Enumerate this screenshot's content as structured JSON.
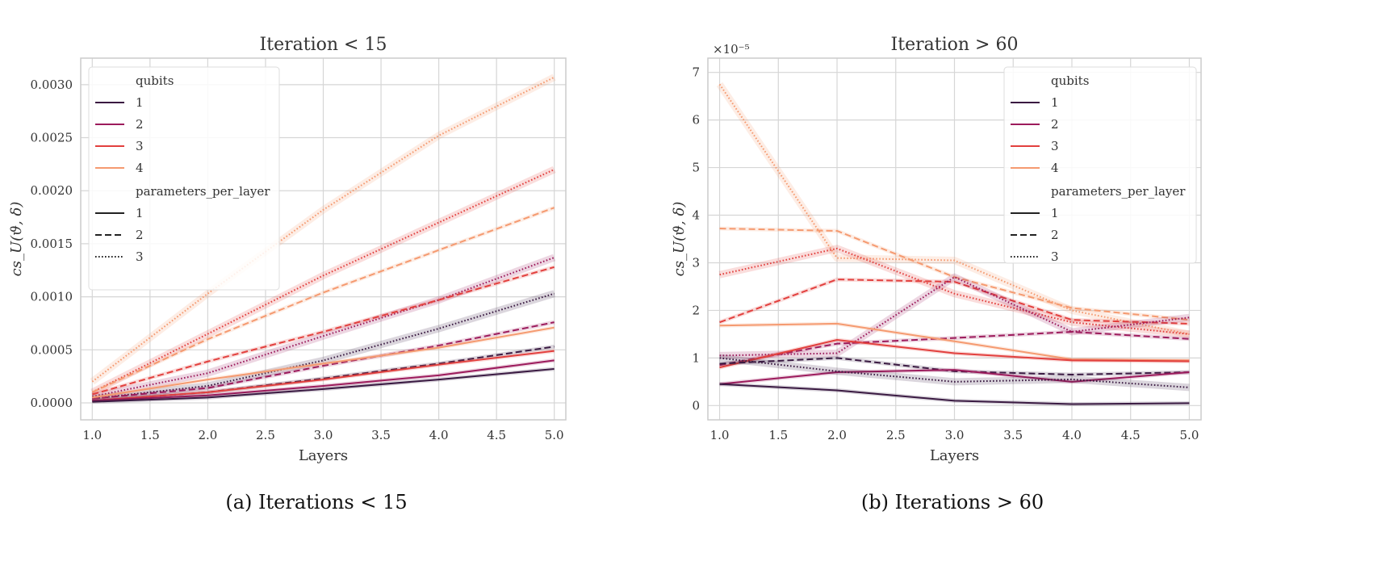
{
  "colors": {
    "q1": "#3a1a42",
    "q2": "#9c1b5c",
    "q3": "#e2403e",
    "q4": "#f59a70",
    "grid": "#d6d6d6",
    "legend_line": "#222222"
  },
  "legend": {
    "hue_title": "qubits",
    "hue_entries": [
      "1",
      "2",
      "3",
      "4"
    ],
    "style_title": "parameters_per_layer",
    "style_entries": [
      "1",
      "2",
      "3"
    ]
  },
  "chart_data": [
    {
      "type": "line",
      "title": "Iteration < 15",
      "caption": "(a) Iterations < 15",
      "xlabel": "Layers",
      "ylabel": "cs_U(ϑ, δ)",
      "y_multiplier_label": "",
      "xlim": [
        0.9,
        5.1
      ],
      "ylim": [
        -0.00016,
        0.00325
      ],
      "xticks": [
        "1.0",
        "1.5",
        "2.0",
        "2.5",
        "3.0",
        "3.5",
        "4.0",
        "4.5",
        "5.0"
      ],
      "yticks": [
        "0.0000",
        "0.0005",
        "0.0010",
        "0.0015",
        "0.0020",
        "0.0025",
        "0.0030"
      ],
      "ytick_values": [
        0,
        0.0005,
        0.001,
        0.0015,
        0.002,
        0.0025,
        0.003
      ],
      "legend_position": "upper-left",
      "grid": true,
      "x": [
        1,
        2,
        3,
        4,
        5
      ],
      "series": [
        {
          "qubits": "4",
          "parameters_per_layer": "3",
          "values": [
            0.0002,
            0.00103,
            0.00182,
            0.00252,
            0.00307
          ]
        },
        {
          "qubits": "3",
          "parameters_per_layer": "3",
          "values": [
            0.0001,
            0.00065,
            0.0012,
            0.0017,
            0.0022
          ]
        },
        {
          "qubits": "4",
          "parameters_per_layer": "2",
          "values": [
            0.0001,
            0.0006,
            0.00104,
            0.00144,
            0.00184
          ]
        },
        {
          "qubits": "2",
          "parameters_per_layer": "3",
          "values": [
            6e-05,
            0.00028,
            0.00063,
            0.00097,
            0.00137
          ]
        },
        {
          "qubits": "3",
          "parameters_per_layer": "2",
          "values": [
            8e-05,
            0.00039,
            0.00067,
            0.00097,
            0.00128
          ]
        },
        {
          "qubits": "1",
          "parameters_per_layer": "3",
          "values": [
            4e-05,
            0.00016,
            0.0004,
            0.0007,
            0.00103
          ]
        },
        {
          "qubits": "2",
          "parameters_per_layer": "2",
          "values": [
            4e-05,
            0.00014,
            0.00035,
            0.00054,
            0.00076
          ]
        },
        {
          "qubits": "4",
          "parameters_per_layer": "1",
          "values": [
            5e-05,
            0.00022,
            0.00037,
            0.00052,
            0.00071
          ]
        },
        {
          "qubits": "1",
          "parameters_per_layer": "2",
          "values": [
            2e-05,
            0.0001,
            0.00023,
            0.00037,
            0.00053
          ]
        },
        {
          "qubits": "3",
          "parameters_per_layer": "1",
          "values": [
            2e-05,
            0.0001,
            0.00022,
            0.00036,
            0.00049
          ]
        },
        {
          "qubits": "2",
          "parameters_per_layer": "1",
          "values": [
            2e-05,
            7e-05,
            0.00016,
            0.00026,
            0.0004
          ]
        },
        {
          "qubits": "1",
          "parameters_per_layer": "1",
          "values": [
            1e-05,
            5e-05,
            0.00013,
            0.00022,
            0.00032
          ]
        }
      ]
    },
    {
      "type": "line",
      "title": "Iteration > 60",
      "caption": "(b) Iterations > 60",
      "xlabel": "Layers",
      "ylabel": "cs_U(ϑ, δ)",
      "y_multiplier_label": "×10⁻⁵",
      "xlim": [
        0.9,
        5.1
      ],
      "ylim": [
        -0.3,
        7.3
      ],
      "xticks": [
        "1.0",
        "1.5",
        "2.0",
        "2.5",
        "3.0",
        "3.5",
        "4.0",
        "4.5",
        "5.0"
      ],
      "yticks": [
        "0",
        "1",
        "2",
        "3",
        "4",
        "5",
        "6",
        "7"
      ],
      "ytick_values": [
        0,
        1,
        2,
        3,
        4,
        5,
        6,
        7
      ],
      "legend_position": "upper-right",
      "grid": true,
      "x": [
        1,
        2,
        3,
        4,
        5
      ],
      "series": [
        {
          "qubits": "4",
          "parameters_per_layer": "3",
          "values": [
            6.75,
            3.1,
            3.05,
            2.0,
            1.5
          ]
        },
        {
          "qubits": "4",
          "parameters_per_layer": "2",
          "values": [
            3.72,
            3.67,
            2.7,
            2.05,
            1.8
          ]
        },
        {
          "qubits": "3",
          "parameters_per_layer": "3",
          "values": [
            2.75,
            3.3,
            2.35,
            1.75,
            1.5
          ]
        },
        {
          "qubits": "3",
          "parameters_per_layer": "2",
          "values": [
            1.75,
            2.65,
            2.6,
            1.8,
            1.72
          ]
        },
        {
          "qubits": "2",
          "parameters_per_layer": "3",
          "values": [
            1.05,
            1.1,
            2.7,
            1.55,
            1.85
          ]
        },
        {
          "qubits": "2",
          "parameters_per_layer": "2",
          "values": [
            0.85,
            1.3,
            1.42,
            1.55,
            1.4
          ]
        },
        {
          "qubits": "4",
          "parameters_per_layer": "1",
          "values": [
            1.68,
            1.72,
            1.35,
            0.97,
            0.95
          ]
        },
        {
          "qubits": "3",
          "parameters_per_layer": "1",
          "values": [
            0.8,
            1.38,
            1.1,
            0.95,
            0.93
          ]
        },
        {
          "qubits": "1",
          "parameters_per_layer": "2",
          "values": [
            0.88,
            1.0,
            0.72,
            0.65,
            0.7
          ]
        },
        {
          "qubits": "2",
          "parameters_per_layer": "1",
          "values": [
            0.45,
            0.7,
            0.75,
            0.5,
            0.7
          ]
        },
        {
          "qubits": "1",
          "parameters_per_layer": "3",
          "values": [
            1.0,
            0.72,
            0.5,
            0.55,
            0.38
          ]
        },
        {
          "qubits": "1",
          "parameters_per_layer": "1",
          "values": [
            0.45,
            0.32,
            0.1,
            0.03,
            0.05
          ]
        }
      ]
    }
  ]
}
